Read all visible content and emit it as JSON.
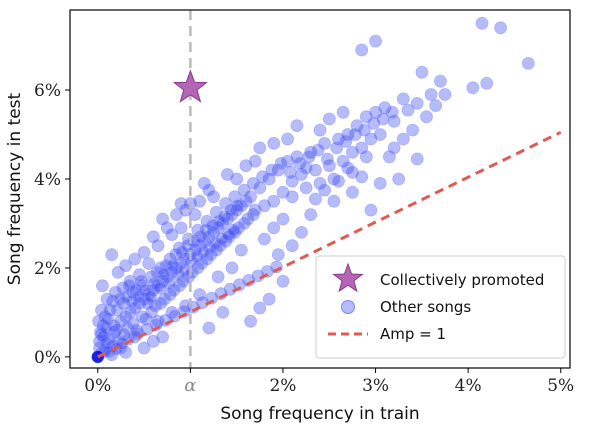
{
  "chart_data": {
    "type": "scatter",
    "title": "",
    "xlabel": "Song frequency in train",
    "ylabel": "Song frequency in test",
    "xlim": [
      -0.3,
      5.1
    ],
    "ylim": [
      -0.25,
      7.8
    ],
    "xticks": [
      {
        "value": 0,
        "label": "0%"
      },
      {
        "value": 1.0,
        "label": "α"
      },
      {
        "value": 2,
        "label": "2%"
      },
      {
        "value": 3,
        "label": "3%"
      },
      {
        "value": 4,
        "label": "4%"
      },
      {
        "value": 5,
        "label": "5%"
      }
    ],
    "yticks": [
      {
        "value": 0,
        "label": "0%"
      },
      {
        "value": 2,
        "label": "2%"
      },
      {
        "value": 4,
        "label": "4%"
      },
      {
        "value": 6,
        "label": "6%"
      }
    ],
    "alpha_x": 1.0,
    "grid": false,
    "legend": {
      "position": "bottom-right",
      "entries": [
        {
          "label": "Collectively promoted",
          "marker": "star"
        },
        {
          "label": "Other songs",
          "marker": "circle"
        },
        {
          "label": "Amp = 1",
          "marker": "dashed-line"
        }
      ]
    },
    "series": [
      {
        "name": "Collectively promoted",
        "marker": "star",
        "color": "#b565b5",
        "points": [
          [
            1.0,
            6.05
          ]
        ]
      },
      {
        "name": "Other songs",
        "marker": "circle",
        "color": "#2d3cf0",
        "points": [
          [
            0.0,
            0.0
          ],
          [
            0.05,
            0.1
          ],
          [
            0.02,
            0.2
          ],
          [
            0.08,
            0.15
          ],
          [
            0.1,
            0.3
          ],
          [
            0.04,
            0.5
          ],
          [
            0.12,
            0.4
          ],
          [
            0.15,
            0.25
          ],
          [
            0.06,
            0.7
          ],
          [
            0.18,
            0.55
          ],
          [
            0.2,
            0.6
          ],
          [
            0.22,
            0.35
          ],
          [
            0.25,
            0.8
          ],
          [
            0.28,
            0.5
          ],
          [
            0.3,
            0.9
          ],
          [
            0.32,
            0.65
          ],
          [
            0.35,
            1.0
          ],
          [
            0.38,
            0.75
          ],
          [
            0.4,
            1.1
          ],
          [
            0.42,
            0.6
          ],
          [
            0.45,
            1.2
          ],
          [
            0.48,
            0.9
          ],
          [
            0.5,
            1.3
          ],
          [
            0.52,
            0.85
          ],
          [
            0.55,
            1.4
          ],
          [
            0.58,
            1.0
          ],
          [
            0.6,
            1.5
          ],
          [
            0.62,
            1.15
          ],
          [
            0.65,
            1.6
          ],
          [
            0.68,
            1.2
          ],
          [
            0.7,
            1.7
          ],
          [
            0.72,
            1.3
          ],
          [
            0.75,
            1.8
          ],
          [
            0.78,
            1.4
          ],
          [
            0.8,
            1.9
          ],
          [
            0.82,
            1.5
          ],
          [
            0.85,
            2.0
          ],
          [
            0.88,
            1.6
          ],
          [
            0.9,
            2.1
          ],
          [
            0.92,
            1.7
          ],
          [
            0.95,
            2.2
          ],
          [
            0.98,
            1.8
          ],
          [
            1.0,
            2.3
          ],
          [
            1.02,
            1.9
          ],
          [
            1.05,
            2.4
          ],
          [
            1.08,
            2.0
          ],
          [
            1.1,
            2.5
          ],
          [
            1.12,
            2.1
          ],
          [
            1.15,
            2.6
          ],
          [
            1.18,
            2.2
          ],
          [
            1.2,
            2.7
          ],
          [
            1.22,
            2.3
          ],
          [
            1.25,
            2.8
          ],
          [
            1.28,
            2.4
          ],
          [
            1.3,
            2.9
          ],
          [
            1.32,
            2.5
          ],
          [
            1.35,
            3.0
          ],
          [
            1.38,
            2.6
          ],
          [
            1.4,
            3.1
          ],
          [
            1.42,
            2.7
          ],
          [
            1.45,
            3.2
          ],
          [
            1.48,
            2.8
          ],
          [
            1.5,
            3.3
          ],
          [
            1.52,
            2.9
          ],
          [
            1.55,
            3.4
          ],
          [
            1.58,
            3.0
          ],
          [
            1.6,
            3.5
          ],
          [
            1.62,
            3.1
          ],
          [
            1.65,
            3.6
          ],
          [
            1.68,
            3.2
          ],
          [
            1.7,
            3.3
          ],
          [
            1.75,
            3.8
          ],
          [
            1.8,
            3.4
          ],
          [
            1.85,
            4.0
          ],
          [
            1.9,
            3.5
          ],
          [
            1.95,
            4.2
          ],
          [
            2.0,
            3.7
          ],
          [
            2.05,
            4.4
          ],
          [
            2.1,
            3.6
          ],
          [
            2.15,
            4.5
          ],
          [
            2.2,
            4.1
          ],
          [
            2.25,
            3.8
          ],
          [
            2.3,
            4.6
          ],
          [
            2.35,
            4.2
          ],
          [
            2.4,
            3.9
          ],
          [
            2.45,
            4.8
          ],
          [
            2.5,
            4.3
          ],
          [
            2.55,
            4.0
          ],
          [
            2.6,
            4.9
          ],
          [
            2.65,
            4.4
          ],
          [
            2.7,
            5.0
          ],
          [
            2.75,
            4.6
          ],
          [
            2.8,
            5.2
          ],
          [
            2.85,
            4.7
          ],
          [
            2.9,
            5.4
          ],
          [
            2.95,
            4.9
          ],
          [
            3.0,
            5.5
          ],
          [
            3.05,
            5.0
          ],
          [
            3.1,
            5.6
          ],
          [
            3.2,
            5.3
          ],
          [
            3.3,
            5.8
          ],
          [
            3.4,
            5.1
          ],
          [
            3.5,
            6.4
          ],
          [
            3.6,
            5.9
          ],
          [
            3.7,
            6.2
          ],
          [
            2.85,
            6.9
          ],
          [
            3.0,
            7.1
          ],
          [
            4.15,
            7.5
          ],
          [
            4.35,
            7.4
          ],
          [
            4.65,
            6.6
          ],
          [
            4.05,
            6.05
          ],
          [
            4.2,
            6.15
          ],
          [
            3.15,
            4.5
          ],
          [
            3.25,
            4.0
          ],
          [
            3.05,
            3.9
          ],
          [
            2.95,
            3.3
          ],
          [
            2.75,
            3.7
          ],
          [
            2.55,
            3.5
          ],
          [
            2.3,
            3.2
          ],
          [
            2.2,
            2.8
          ],
          [
            2.1,
            2.5
          ],
          [
            1.95,
            2.3
          ],
          [
            2.0,
            1.7
          ],
          [
            1.85,
            1.3
          ],
          [
            1.75,
            1.1
          ],
          [
            1.65,
            0.8
          ],
          [
            1.2,
            0.65
          ],
          [
            1.35,
            1.0
          ],
          [
            0.5,
            0.2
          ],
          [
            0.6,
            0.35
          ],
          [
            0.7,
            0.45
          ],
          [
            0.3,
            0.1
          ],
          [
            0.15,
            0.05
          ],
          [
            0.08,
            0.9
          ],
          [
            0.1,
            1.3
          ],
          [
            0.05,
            1.6
          ],
          [
            0.15,
            2.3
          ],
          [
            0.22,
            1.9
          ],
          [
            0.35,
            1.7
          ],
          [
            0.45,
            1.85
          ],
          [
            0.55,
            2.1
          ],
          [
            0.65,
            2.5
          ],
          [
            0.75,
            2.9
          ],
          [
            0.85,
            3.2
          ],
          [
            0.95,
            3.3
          ],
          [
            1.05,
            3.2
          ],
          [
            0.7,
            3.1
          ],
          [
            1.25,
            3.6
          ],
          [
            1.15,
            3.9
          ],
          [
            1.4,
            4.1
          ],
          [
            1.5,
            4.0
          ],
          [
            1.6,
            4.3
          ],
          [
            1.7,
            4.4
          ],
          [
            1.75,
            4.7
          ],
          [
            1.9,
            4.8
          ],
          [
            2.05,
            4.9
          ],
          [
            2.15,
            5.2
          ],
          [
            2.4,
            5.1
          ],
          [
            2.5,
            5.35
          ],
          [
            2.65,
            5.5
          ],
          [
            1.55,
            2.4
          ],
          [
            1.45,
            2.0
          ],
          [
            1.3,
            1.8
          ],
          [
            1.1,
            1.4
          ],
          [
            0.95,
            1.15
          ],
          [
            0.8,
            1.0
          ],
          [
            0.65,
            0.8
          ],
          [
            0.4,
            0.45
          ],
          [
            0.25,
            0.2
          ],
          [
            0.18,
            0.7
          ],
          [
            0.28,
            1.2
          ],
          [
            0.38,
            1.45
          ],
          [
            0.48,
            1.6
          ],
          [
            0.58,
            1.8
          ],
          [
            0.68,
            2.0
          ],
          [
            0.78,
            2.2
          ],
          [
            0.88,
            2.45
          ],
          [
            0.98,
            2.65
          ],
          [
            1.08,
            2.85
          ],
          [
            1.18,
            3.05
          ],
          [
            1.28,
            3.25
          ],
          [
            1.38,
            3.45
          ],
          [
            1.48,
            3.6
          ],
          [
            1.58,
            3.75
          ],
          [
            1.68,
            3.9
          ],
          [
            1.78,
            4.05
          ],
          [
            1.88,
            4.2
          ],
          [
            1.98,
            4.35
          ],
          [
            2.08,
            4.15
          ],
          [
            2.18,
            4.35
          ],
          [
            2.28,
            4.5
          ],
          [
            2.38,
            4.65
          ],
          [
            2.48,
            4.45
          ],
          [
            2.58,
            4.7
          ],
          [
            2.68,
            4.85
          ],
          [
            2.78,
            5.0
          ],
          [
            2.88,
            5.1
          ],
          [
            2.98,
            5.25
          ],
          [
            3.08,
            5.35
          ],
          [
            3.18,
            5.5
          ],
          [
            3.35,
            5.55
          ],
          [
            3.45,
            5.7
          ],
          [
            3.55,
            5.4
          ],
          [
            3.65,
            5.65
          ],
          [
            3.75,
            5.9
          ],
          [
            3.3,
            4.9
          ],
          [
            3.2,
            4.7
          ],
          [
            3.45,
            4.45
          ],
          [
            2.9,
            4.5
          ],
          [
            2.7,
            4.25
          ],
          [
            0.02,
            0.35
          ],
          [
            0.03,
            0.55
          ],
          [
            0.01,
            0.8
          ],
          [
            0.04,
            1.05
          ],
          [
            0.06,
            0.45
          ],
          [
            0.09,
            0.65
          ],
          [
            0.11,
            0.85
          ],
          [
            0.13,
            1.05
          ],
          [
            0.16,
            1.25
          ],
          [
            0.19,
            1.45
          ],
          [
            0.21,
            1.05
          ],
          [
            0.24,
            1.3
          ],
          [
            0.27,
            1.55
          ],
          [
            0.31,
            1.35
          ],
          [
            0.34,
            1.6
          ],
          [
            0.37,
            1.25
          ],
          [
            0.41,
            1.5
          ],
          [
            0.44,
            1.35
          ],
          [
            0.47,
            1.7
          ],
          [
            0.51,
            1.5
          ],
          [
            0.54,
            1.2
          ],
          [
            0.57,
            1.35
          ],
          [
            0.61,
            1.65
          ],
          [
            0.64,
            1.9
          ],
          [
            0.67,
            1.55
          ],
          [
            0.71,
            1.85
          ],
          [
            0.74,
            2.05
          ],
          [
            0.77,
            1.65
          ],
          [
            0.81,
            2.05
          ],
          [
            0.84,
            2.3
          ],
          [
            0.87,
            1.85
          ],
          [
            0.91,
            2.35
          ],
          [
            0.94,
            1.95
          ],
          [
            0.97,
            2.5
          ],
          [
            1.01,
            2.15
          ],
          [
            1.04,
            2.6
          ],
          [
            1.07,
            2.25
          ],
          [
            1.11,
            2.7
          ],
          [
            1.14,
            2.35
          ],
          [
            1.17,
            2.85
          ],
          [
            1.21,
            2.45
          ],
          [
            1.24,
            2.95
          ],
          [
            1.27,
            2.55
          ],
          [
            1.31,
            3.05
          ],
          [
            1.34,
            2.65
          ],
          [
            1.37,
            3.15
          ],
          [
            1.41,
            2.75
          ],
          [
            1.44,
            3.3
          ],
          [
            1.47,
            2.85
          ],
          [
            1.51,
            3.4
          ],
          [
            0.12,
            0.12
          ],
          [
            0.2,
            0.18
          ],
          [
            0.26,
            0.3
          ],
          [
            0.33,
            0.4
          ],
          [
            0.43,
            0.52
          ],
          [
            0.53,
            0.62
          ],
          [
            0.63,
            0.72
          ],
          [
            0.73,
            0.82
          ],
          [
            0.83,
            0.92
          ],
          [
            0.93,
            1.02
          ],
          [
            1.03,
            1.12
          ],
          [
            1.13,
            1.22
          ],
          [
            1.23,
            1.32
          ],
          [
            1.33,
            1.42
          ],
          [
            1.43,
            1.52
          ],
          [
            1.53,
            1.62
          ],
          [
            1.63,
            1.72
          ],
          [
            1.73,
            1.82
          ],
          [
            1.83,
            1.92
          ],
          [
            1.93,
            2.02
          ],
          [
            0.3,
            2.05
          ],
          [
            0.4,
            2.2
          ],
          [
            0.5,
            2.35
          ],
          [
            0.6,
            2.7
          ],
          [
            0.8,
            2.75
          ],
          [
            0.9,
            2.9
          ],
          [
            1.0,
            3.45
          ],
          [
            1.1,
            3.5
          ],
          [
            0.9,
            3.45
          ],
          [
            1.2,
            3.75
          ],
          [
            2.1,
            3.95
          ],
          [
            2.25,
            4.25
          ],
          [
            2.35,
            3.55
          ],
          [
            2.45,
            3.75
          ],
          [
            2.6,
            3.95
          ],
          [
            2.75,
            4.15
          ],
          [
            2.85,
            4.05
          ],
          [
            1.8,
            2.65
          ],
          [
            1.9,
            2.9
          ],
          [
            2.0,
            3.1
          ]
        ]
      },
      {
        "name": "Amp = 1",
        "marker": "dashed-line",
        "color": "#e05a54",
        "points": [
          [
            0,
            0
          ],
          [
            5,
            5.05
          ]
        ]
      }
    ]
  }
}
